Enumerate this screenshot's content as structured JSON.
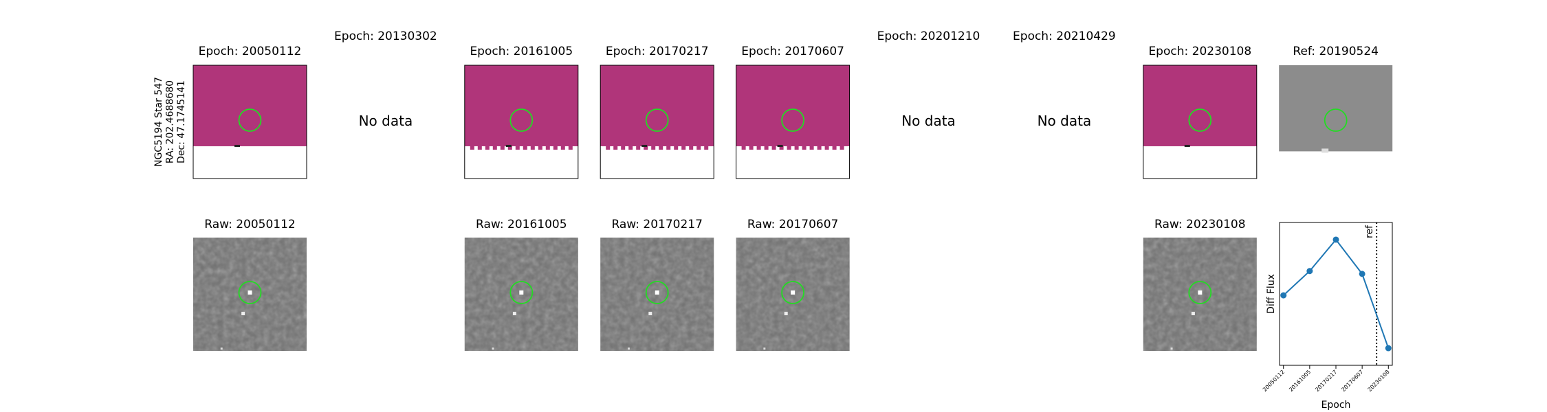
{
  "info": {
    "lines": [
      "NGC5194 Star 547",
      "RA: 202.4688680",
      "Dec: 47.1745141"
    ]
  },
  "top_row": [
    {
      "title": "Epoch: 20050112"
    },
    {
      "title": "Epoch: 20130302",
      "no_data": "No data"
    },
    {
      "title": "Epoch: 20161005"
    },
    {
      "title": "Epoch: 20170217"
    },
    {
      "title": "Epoch: 20170607"
    },
    {
      "title": "Epoch: 20201210",
      "no_data": "No data"
    },
    {
      "title": "Epoch: 20210429",
      "no_data": "No data"
    },
    {
      "title": "Epoch: 20230108"
    },
    {
      "title": "Ref: 20190524"
    }
  ],
  "bottom_row": [
    {
      "column": 0,
      "title": "Raw: 20050112"
    },
    {
      "column": 2,
      "title": "Raw: 20161005"
    },
    {
      "column": 3,
      "title": "Raw: 20170217"
    },
    {
      "column": 4,
      "title": "Raw: 20170607"
    },
    {
      "column": 7,
      "title": "Raw: 20230108"
    }
  ],
  "chart_data": {
    "type": "line",
    "categories": [
      "20050112",
      "20161005",
      "20170217",
      "20170607",
      "20230108"
    ],
    "values": [
      0.49,
      0.66,
      0.88,
      0.64,
      0.12
    ],
    "color": "#1f77b4",
    "ylim": [
      0,
      1
    ],
    "y_label": "Diff Flux",
    "x_label": "Epoch",
    "ref_label": "ref"
  }
}
